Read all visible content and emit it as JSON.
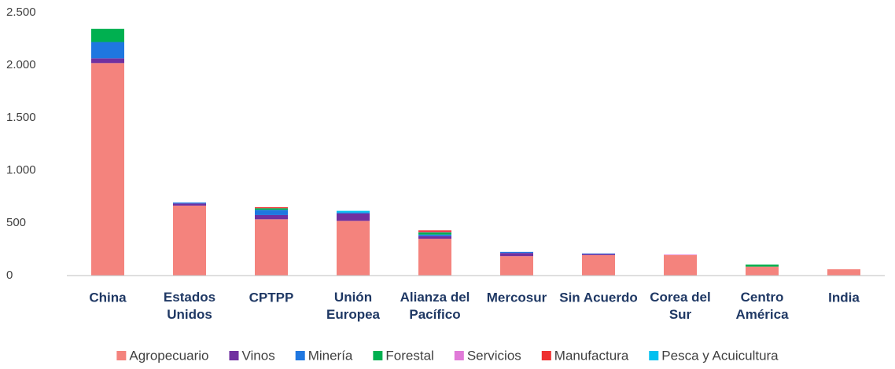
{
  "chart_data": {
    "type": "stacked_bar",
    "categories": [
      "China",
      "Estados Unidos",
      "CPTPP",
      "Unión Europea",
      "Alianza del Pacífico",
      "Mercosur",
      "Sin Acuerdo",
      "Corea del Sur",
      "Centro América",
      "India"
    ],
    "series": [
      {
        "name": "Agropecuario",
        "color": "#f4837d",
        "values": [
          2020,
          665,
          535,
          520,
          350,
          185,
          195,
          195,
          85,
          60
        ]
      },
      {
        "name": "Vinos",
        "color": "#7030a0",
        "values": [
          45,
          20,
          40,
          70,
          25,
          30,
          10,
          0,
          0,
          0
        ]
      },
      {
        "name": "Minería",
        "color": "#1f77e0",
        "values": [
          155,
          10,
          50,
          10,
          15,
          10,
          5,
          0,
          0,
          0
        ]
      },
      {
        "name": "Forestal",
        "color": "#00b050",
        "values": [
          125,
          0,
          15,
          0,
          20,
          0,
          0,
          0,
          20,
          0
        ]
      },
      {
        "name": "Servicios",
        "color": "#e07ad8",
        "values": [
          0,
          0,
          0,
          0,
          5,
          0,
          0,
          5,
          0,
          0
        ]
      },
      {
        "name": "Manufactura",
        "color": "#ee2f2f",
        "values": [
          0,
          0,
          10,
          0,
          15,
          0,
          0,
          0,
          0,
          0
        ]
      },
      {
        "name": "Pesca y Acuicultura",
        "color": "#00c0f0",
        "values": [
          0,
          0,
          0,
          15,
          0,
          0,
          0,
          0,
          0,
          0
        ]
      }
    ],
    "ylim": [
      0,
      2500
    ],
    "yticks": [
      0,
      500,
      {
        "value": 1000,
        "label": "1.000"
      },
      {
        "value": 1500,
        "label": "1.500"
      },
      {
        "value": 2000,
        "label": "2.000"
      },
      {
        "value": 2500,
        "label": "2.500"
      }
    ],
    "grid": false,
    "legend": "bottom"
  }
}
